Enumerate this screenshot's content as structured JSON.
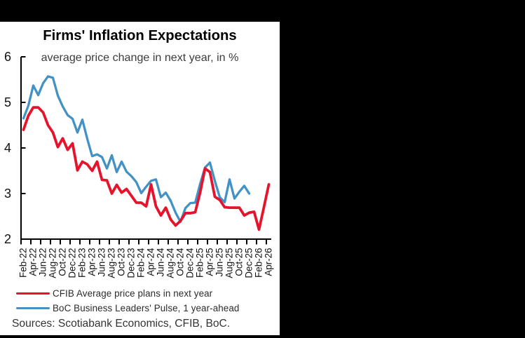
{
  "window": {
    "background": "#000000",
    "panel_background": "#ffffff"
  },
  "chart": {
    "title": "Firms' Inflation Expectations",
    "subtitle": "average price change in next year, in %",
    "source": "Sources: Scotiabank Economics, CFIB, BoC."
  },
  "legend": [
    {
      "label": "CFIB Average price plans in next year",
      "color": "#e5142c"
    },
    {
      "label": "BoC Business Leaders' Pulse, 1 year-ahead",
      "color": "#4292c5"
    }
  ],
  "chart_data": {
    "type": "line",
    "title": "Firms' Inflation Expectations",
    "subtitle": "average price change in next year, in %",
    "xlabel": "",
    "ylabel": "",
    "ylim": [
      2,
      6
    ],
    "yticks": [
      6,
      5,
      4,
      3,
      2
    ],
    "grid": false,
    "legend_position": "bottom-left",
    "x_tick_labels": [
      "Feb-22",
      "Apr-22",
      "Jun-22",
      "Aug-22",
      "Oct-22",
      "Dec-22",
      "Feb-23",
      "Apr-23",
      "Jun-23",
      "Aug-23",
      "Oct-23",
      "Dec-23",
      "Feb-24",
      "Apr-24",
      "Jun-24",
      "Aug-24",
      "Oct-24",
      "Dec-24",
      "Feb-25",
      "Apr-25",
      "Jun-25",
      "Aug-25",
      "Oct-25",
      "Dec-25",
      "Feb-26",
      "Apr-26"
    ],
    "x_frequency": "monthly",
    "x_start": "Feb-2022",
    "series": [
      {
        "name": "CFIB Average price plans in next year",
        "color": "#e5142c",
        "values": [
          4.4,
          4.71,
          4.89,
          4.89,
          4.78,
          4.5,
          4.34,
          4.02,
          4.21,
          3.96,
          4.1,
          3.51,
          3.7,
          3.64,
          3.5,
          3.7,
          3.3,
          3.29,
          3.0,
          3.19,
          3.02,
          3.1,
          2.95,
          2.8,
          2.8,
          2.72,
          3.2,
          2.72,
          2.52,
          2.69,
          2.43,
          2.3,
          2.4,
          2.57,
          2.57,
          2.59,
          3.02,
          3.55,
          3.47,
          2.93,
          2.86,
          2.7,
          2.69,
          2.69,
          2.69,
          2.52,
          2.58,
          2.6,
          2.21,
          2.7,
          3.2
        ]
      },
      {
        "name": "BoC Business Leaders' Pulse, 1 year-ahead",
        "color": "#4292c5",
        "values": [
          4.65,
          4.93,
          5.37,
          5.16,
          5.42,
          5.57,
          5.54,
          5.15,
          4.91,
          4.72,
          4.64,
          4.34,
          4.62,
          4.2,
          3.82,
          3.86,
          3.8,
          3.55,
          3.84,
          3.47,
          3.7,
          3.48,
          3.38,
          3.25,
          3.01,
          3.15,
          3.28,
          3.31,
          2.92,
          3.02,
          2.84,
          2.58,
          2.38,
          2.68,
          2.79,
          2.8,
          3.21,
          3.57,
          3.68,
          3.28,
          2.92,
          2.81,
          3.31,
          2.89,
          3.04,
          3.17,
          3.0
        ]
      }
    ]
  }
}
